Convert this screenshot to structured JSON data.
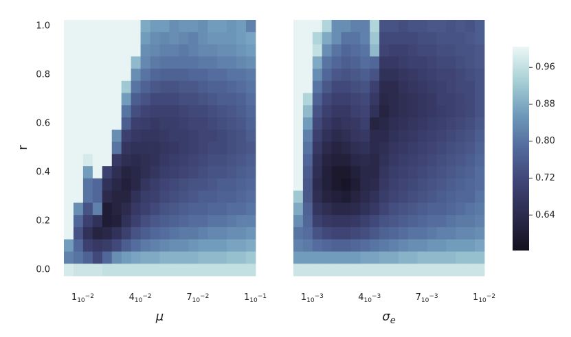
{
  "chart_data": {
    "type": "heatmap",
    "y_label": "r",
    "y": [
      1.0,
      0.95,
      0.9,
      0.85,
      0.8,
      0.75,
      0.7,
      0.65,
      0.6,
      0.55,
      0.5,
      0.45,
      0.4,
      0.35,
      0.3,
      0.25,
      0.2,
      0.15,
      0.1,
      0.05,
      0.0
    ],
    "ylim": [
      -0.025,
      1.025
    ],
    "yticks": [
      {
        "value": 0,
        "label": "0.0"
      },
      0.2,
      0.4,
      0.6,
      0.8,
      {
        "value": 1,
        "label": "1.0"
      }
    ],
    "clim": [
      0.563,
      1.005
    ],
    "colorbar_ticks": [
      0.96,
      0.88,
      {
        "value": 0.8,
        "label": "0.80"
      },
      0.72,
      0.64
    ],
    "colormap": [
      "#130f1d",
      "#2b2a4c",
      "#3f4475",
      "#52699b",
      "#6f9abb",
      "#a8d0d6",
      "#ecf7f5"
    ],
    "panels": [
      {
        "x_label": "μ",
        "x": [
          0.005,
          0.01,
          0.015,
          0.02,
          0.025,
          0.03,
          0.035,
          0.04,
          0.045,
          0.05,
          0.055,
          0.06,
          0.065,
          0.07,
          0.075,
          0.08,
          0.085,
          0.09,
          0.095,
          0.1
        ],
        "xlim": [
          0.0025,
          0.1025
        ],
        "xticks": [
          {
            "value": 0.01,
            "label": "1",
            "sub": "10",
            "sup": "−2"
          },
          {
            "value": 0.04,
            "label": "4",
            "sub": "10",
            "sup": "−2"
          },
          {
            "value": 0.07,
            "label": "7",
            "sub": "10",
            "sup": "−2"
          },
          {
            "value": 0.1,
            "label": "1",
            "sub": "10",
            "sup": "−1"
          }
        ],
        "z": [
          [
            1,
            1,
            1,
            1,
            1,
            1,
            1,
            1,
            0.88,
            0.86,
            0.86,
            0.84,
            0.85,
            0.85,
            0.84,
            0.86,
            0.86,
            0.85,
            0.86,
            0.82
          ],
          [
            1,
            1,
            1,
            1,
            1,
            1,
            1,
            1,
            0.86,
            0.84,
            0.83,
            0.84,
            0.83,
            0.82,
            0.84,
            0.85,
            0.85,
            0.85,
            0.86,
            0.87
          ],
          [
            1,
            1,
            1,
            1,
            1,
            1,
            1,
            1,
            0.84,
            0.83,
            0.82,
            0.82,
            0.81,
            0.82,
            0.83,
            0.83,
            0.84,
            0.84,
            0.85,
            0.86
          ],
          [
            1,
            1,
            1,
            1,
            1,
            1,
            1,
            0.9,
            0.83,
            0.81,
            0.8,
            0.8,
            0.8,
            0.8,
            0.81,
            0.81,
            0.82,
            0.82,
            0.83,
            0.84
          ],
          [
            1,
            1,
            1,
            1,
            1,
            1,
            1,
            0.84,
            0.8,
            0.78,
            0.77,
            0.77,
            0.77,
            0.78,
            0.78,
            0.79,
            0.79,
            0.8,
            0.8,
            0.81
          ],
          [
            1,
            1,
            1,
            1,
            1,
            1,
            0.92,
            0.8,
            0.77,
            0.75,
            0.74,
            0.74,
            0.75,
            0.75,
            0.76,
            0.77,
            0.77,
            0.78,
            0.79,
            0.8
          ],
          [
            1,
            1,
            1,
            1,
            1,
            1,
            0.86,
            0.76,
            0.74,
            0.72,
            0.72,
            0.72,
            0.73,
            0.73,
            0.74,
            0.75,
            0.76,
            0.76,
            0.77,
            0.79
          ],
          [
            1,
            1,
            1,
            1,
            1,
            1,
            0.8,
            0.73,
            0.71,
            0.7,
            0.7,
            0.7,
            0.71,
            0.72,
            0.72,
            0.73,
            0.74,
            0.75,
            0.76,
            0.78
          ],
          [
            1,
            1,
            1,
            1,
            1,
            1,
            0.76,
            0.7,
            0.69,
            0.68,
            0.69,
            0.69,
            0.7,
            0.71,
            0.71,
            0.72,
            0.73,
            0.74,
            0.75,
            0.77
          ],
          [
            1,
            1,
            1,
            1,
            1,
            0.84,
            0.7,
            0.68,
            0.67,
            0.67,
            0.68,
            0.69,
            0.69,
            0.7,
            0.71,
            0.71,
            0.72,
            0.73,
            0.74,
            0.76
          ],
          [
            1,
            1,
            1,
            1,
            1,
            0.8,
            0.67,
            0.66,
            0.66,
            0.66,
            0.67,
            0.68,
            0.69,
            0.7,
            0.71,
            0.72,
            0.72,
            0.73,
            0.74,
            0.75
          ],
          [
            1,
            1,
            0.98,
            1,
            1,
            0.68,
            0.65,
            0.64,
            0.65,
            0.66,
            0.68,
            0.69,
            0.7,
            0.71,
            0.72,
            0.73,
            0.73,
            0.74,
            0.75,
            0.76
          ],
          [
            1,
            1,
            0.86,
            1,
            0.7,
            0.65,
            0.62,
            0.63,
            0.65,
            0.67,
            0.69,
            0.7,
            0.71,
            0.72,
            0.73,
            0.74,
            0.74,
            0.75,
            0.76,
            0.77
          ],
          [
            1,
            1,
            0.8,
            0.78,
            0.66,
            0.63,
            0.61,
            0.63,
            0.67,
            0.69,
            0.71,
            0.72,
            0.73,
            0.74,
            0.74,
            0.75,
            0.76,
            0.76,
            0.77,
            0.78
          ],
          [
            1,
            1,
            0.8,
            0.78,
            0.64,
            0.62,
            0.62,
            0.66,
            0.69,
            0.7,
            0.72,
            0.73,
            0.74,
            0.75,
            0.76,
            0.76,
            0.77,
            0.77,
            0.78,
            0.79
          ],
          [
            1,
            0.84,
            0.74,
            0.82,
            0.6,
            0.62,
            0.64,
            0.68,
            0.7,
            0.72,
            0.74,
            0.75,
            0.76,
            0.77,
            0.77,
            0.78,
            0.78,
            0.79,
            0.79,
            0.8
          ],
          [
            1,
            0.78,
            0.7,
            0.66,
            0.6,
            0.61,
            0.66,
            0.7,
            0.73,
            0.75,
            0.76,
            0.77,
            0.78,
            0.79,
            0.79,
            0.8,
            0.8,
            0.81,
            0.82,
            0.82
          ],
          [
            1,
            0.74,
            0.66,
            0.62,
            0.63,
            0.66,
            0.7,
            0.74,
            0.76,
            0.78,
            0.79,
            0.8,
            0.81,
            0.81,
            0.82,
            0.83,
            0.83,
            0.84,
            0.84,
            0.85
          ],
          [
            0.86,
            0.78,
            0.7,
            0.68,
            0.69,
            0.72,
            0.76,
            0.79,
            0.81,
            0.82,
            0.83,
            0.84,
            0.84,
            0.85,
            0.86,
            0.86,
            0.86,
            0.87,
            0.87,
            0.88
          ],
          [
            0.82,
            0.8,
            0.77,
            0.72,
            0.78,
            0.84,
            0.86,
            0.87,
            0.88,
            0.88,
            0.89,
            0.89,
            0.89,
            0.89,
            0.9,
            0.9,
            0.9,
            0.91,
            0.91,
            0.92
          ],
          [
            0.98,
            0.97,
            0.97,
            0.97,
            0.96,
            0.96,
            0.96,
            0.96,
            0.96,
            0.96,
            0.96,
            0.96,
            0.96,
            0.96,
            0.96,
            0.96,
            0.96,
            0.96,
            0.96,
            0.96
          ]
        ]
      },
      {
        "x_label": "σ",
        "x_label_sub": "e",
        "x": [
          0.0005,
          0.001,
          0.0015,
          0.002,
          0.0025,
          0.003,
          0.0035,
          0.004,
          0.0045,
          0.005,
          0.0055,
          0.006,
          0.0065,
          0.007,
          0.0075,
          0.008,
          0.0085,
          0.009,
          0.0095,
          0.01
        ],
        "xlim": [
          0.00025,
          0.01025
        ],
        "xticks": [
          {
            "value": 0.001,
            "label": "1",
            "sub": "10",
            "sup": "−3"
          },
          {
            "value": 0.004,
            "label": "4",
            "sub": "10",
            "sup": "−3"
          },
          {
            "value": 0.007,
            "label": "7",
            "sub": "10",
            "sup": "−3"
          },
          {
            "value": 0.01,
            "label": "1",
            "sub": "10",
            "sup": "−2"
          }
        ],
        "z": [
          [
            1,
            1,
            1,
            0.94,
            0.84,
            0.84,
            0.82,
            0.82,
            0.94,
            0.74,
            0.74,
            0.73,
            0.74,
            0.74,
            0.75,
            0.75,
            0.74,
            0.75,
            0.74,
            0.76
          ],
          [
            1,
            1,
            0.94,
            0.88,
            0.84,
            0.8,
            0.8,
            0.82,
            0.92,
            0.72,
            0.72,
            0.72,
            0.72,
            0.73,
            0.73,
            0.74,
            0.74,
            0.74,
            0.75,
            0.76
          ],
          [
            1,
            1,
            0.96,
            0.84,
            0.8,
            0.78,
            0.79,
            0.8,
            0.9,
            0.71,
            0.7,
            0.7,
            0.71,
            0.72,
            0.72,
            0.73,
            0.73,
            0.74,
            0.74,
            0.75
          ],
          [
            1,
            1,
            0.88,
            0.8,
            0.78,
            0.76,
            0.77,
            0.79,
            0.78,
            0.68,
            0.68,
            0.69,
            0.7,
            0.7,
            0.71,
            0.72,
            0.72,
            0.73,
            0.74,
            0.75
          ],
          [
            1,
            1,
            0.84,
            0.78,
            0.75,
            0.74,
            0.75,
            0.76,
            0.74,
            0.66,
            0.66,
            0.67,
            0.68,
            0.69,
            0.7,
            0.71,
            0.71,
            0.72,
            0.73,
            0.74
          ],
          [
            1,
            1,
            0.8,
            0.75,
            0.72,
            0.72,
            0.73,
            0.74,
            0.7,
            0.64,
            0.64,
            0.66,
            0.67,
            0.68,
            0.69,
            0.7,
            0.71,
            0.72,
            0.72,
            0.74
          ],
          [
            1,
            0.94,
            0.77,
            0.72,
            0.7,
            0.7,
            0.71,
            0.72,
            0.68,
            0.63,
            0.64,
            0.65,
            0.66,
            0.67,
            0.68,
            0.7,
            0.7,
            0.71,
            0.72,
            0.74
          ],
          [
            1,
            0.9,
            0.74,
            0.7,
            0.68,
            0.68,
            0.7,
            0.71,
            0.66,
            0.62,
            0.64,
            0.65,
            0.66,
            0.67,
            0.68,
            0.69,
            0.7,
            0.71,
            0.72,
            0.74
          ],
          [
            1,
            0.86,
            0.72,
            0.68,
            0.66,
            0.67,
            0.68,
            0.7,
            0.62,
            0.63,
            0.65,
            0.66,
            0.67,
            0.68,
            0.69,
            0.7,
            0.71,
            0.72,
            0.73,
            0.75
          ],
          [
            1,
            0.82,
            0.7,
            0.66,
            0.64,
            0.65,
            0.67,
            0.68,
            0.64,
            0.64,
            0.66,
            0.67,
            0.68,
            0.69,
            0.7,
            0.71,
            0.72,
            0.73,
            0.74,
            0.76
          ],
          [
            1,
            0.8,
            0.68,
            0.64,
            0.62,
            0.63,
            0.65,
            0.66,
            0.64,
            0.65,
            0.67,
            0.68,
            0.69,
            0.7,
            0.71,
            0.72,
            0.73,
            0.74,
            0.75,
            0.77
          ],
          [
            1,
            0.78,
            0.66,
            0.62,
            0.61,
            0.61,
            0.63,
            0.64,
            0.63,
            0.66,
            0.68,
            0.69,
            0.7,
            0.71,
            0.72,
            0.73,
            0.74,
            0.75,
            0.76,
            0.78
          ],
          [
            1,
            0.76,
            0.65,
            0.61,
            0.59,
            0.59,
            0.61,
            0.63,
            0.63,
            0.67,
            0.69,
            0.7,
            0.71,
            0.72,
            0.73,
            0.74,
            0.75,
            0.76,
            0.77,
            0.79
          ],
          [
            1,
            0.75,
            0.64,
            0.61,
            0.59,
            0.58,
            0.6,
            0.63,
            0.64,
            0.68,
            0.7,
            0.71,
            0.72,
            0.73,
            0.74,
            0.75,
            0.76,
            0.77,
            0.78,
            0.79
          ],
          [
            0.92,
            0.75,
            0.65,
            0.62,
            0.61,
            0.6,
            0.62,
            0.64,
            0.66,
            0.69,
            0.71,
            0.72,
            0.73,
            0.74,
            0.75,
            0.76,
            0.77,
            0.78,
            0.78,
            0.8
          ],
          [
            0.88,
            0.77,
            0.67,
            0.65,
            0.63,
            0.63,
            0.64,
            0.66,
            0.68,
            0.71,
            0.73,
            0.74,
            0.75,
            0.76,
            0.77,
            0.77,
            0.78,
            0.79,
            0.8,
            0.81
          ],
          [
            0.84,
            0.78,
            0.7,
            0.68,
            0.67,
            0.67,
            0.68,
            0.7,
            0.72,
            0.74,
            0.75,
            0.76,
            0.77,
            0.78,
            0.79,
            0.79,
            0.8,
            0.81,
            0.81,
            0.82
          ],
          [
            0.8,
            0.79,
            0.74,
            0.72,
            0.71,
            0.71,
            0.72,
            0.73,
            0.75,
            0.77,
            0.78,
            0.79,
            0.8,
            0.8,
            0.81,
            0.82,
            0.82,
            0.83,
            0.83,
            0.84
          ],
          [
            0.82,
            0.81,
            0.79,
            0.78,
            0.77,
            0.77,
            0.78,
            0.79,
            0.8,
            0.81,
            0.82,
            0.83,
            0.84,
            0.84,
            0.85,
            0.85,
            0.86,
            0.86,
            0.86,
            0.87
          ],
          [
            0.86,
            0.86,
            0.86,
            0.86,
            0.86,
            0.86,
            0.86,
            0.87,
            0.87,
            0.88,
            0.88,
            0.89,
            0.89,
            0.9,
            0.9,
            0.9,
            0.9,
            0.91,
            0.91,
            0.91
          ],
          [
            0.97,
            0.97,
            0.97,
            0.97,
            0.97,
            0.97,
            0.97,
            0.97,
            0.97,
            0.97,
            0.97,
            0.97,
            0.97,
            0.97,
            0.97,
            0.97,
            0.97,
            0.97,
            0.97,
            0.97
          ]
        ]
      }
    ]
  }
}
